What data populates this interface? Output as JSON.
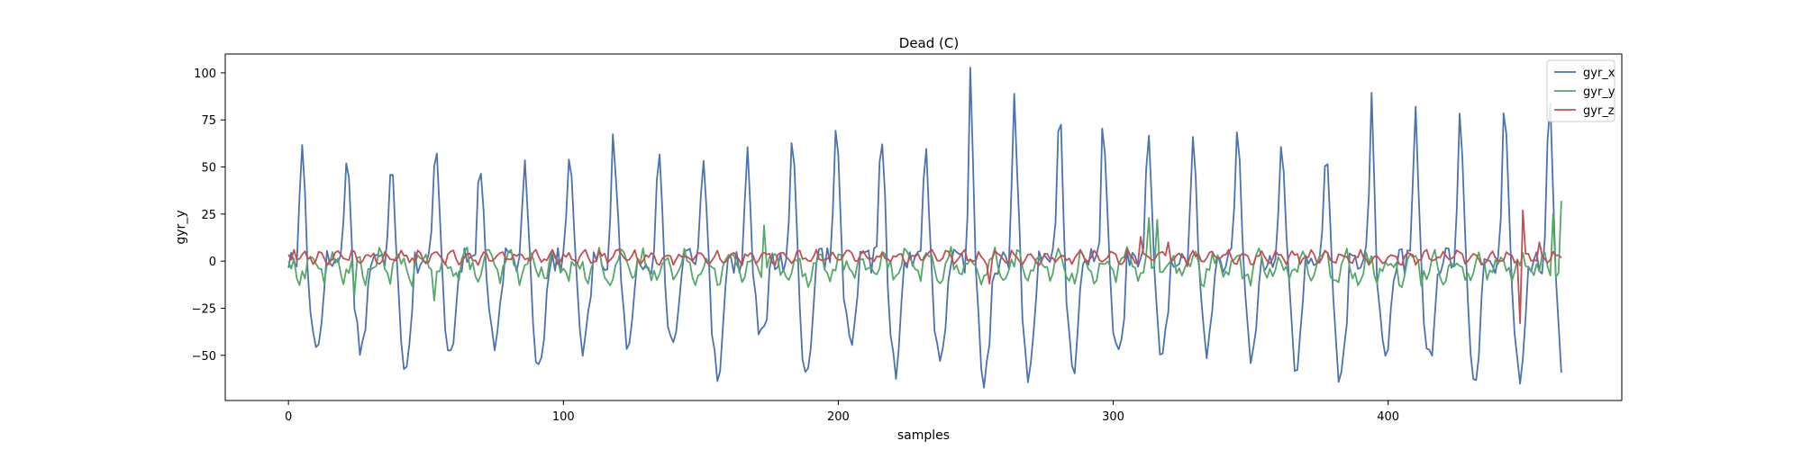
{
  "chart_data": {
    "type": "line",
    "title": "Dead (C)",
    "xlabel": "samples",
    "ylabel": "gyr_y",
    "xlim": [
      -23,
      485
    ],
    "ylim": [
      -74,
      110
    ],
    "xticks": [
      0,
      100,
      200,
      300,
      400
    ],
    "yticks": [
      -50,
      -25,
      0,
      25,
      50,
      75,
      100
    ],
    "xtick_labels": [
      "0",
      "100",
      "200",
      "300",
      "400"
    ],
    "ytick_labels": [
      "−50",
      "−25",
      "0",
      "25",
      "50",
      "75",
      "100"
    ],
    "legend_position": "top-right",
    "n_samples": 464,
    "series": [
      {
        "name": "gyr_x",
        "color": "#4c72b0",
        "period": 16.2,
        "phase": 5,
        "peaks": [
          64,
          64,
          68,
          70,
          55,
          59,
          81,
          71,
          62,
          66,
          66,
          80,
          75,
          84,
          64,
          96,
          86,
          94,
          72,
          73,
          72,
          75,
          71,
          67,
          100,
          82,
          92,
          101,
          102
        ],
        "troughs": [
          -46,
          -46,
          -54,
          -47,
          -48,
          -57,
          -46,
          -45,
          -45,
          -60,
          -43,
          -58,
          -48,
          -58,
          -57,
          -62,
          -63,
          -55,
          -50,
          -48,
          -45,
          -50,
          -56,
          -62,
          -54,
          -53,
          -65,
          -60,
          -58
        ],
        "noise": 7,
        "baseline": 0
      },
      {
        "name": "gyr_y",
        "color": "#55a868",
        "period": 8,
        "amplitude": 6,
        "noise": 5,
        "baseline": -3,
        "spikes": [
          [
            1,
            -4
          ],
          [
            24,
            -18
          ],
          [
            53,
            -21
          ],
          [
            173,
            19
          ],
          [
            182,
            -10
          ],
          [
            286,
            -12
          ],
          [
            313,
            23
          ],
          [
            316,
            22
          ],
          [
            334,
            -4
          ],
          [
            350,
            -13
          ],
          [
            460,
            25
          ],
          [
            463,
            32
          ]
        ]
      },
      {
        "name": "gyr_z",
        "color": "#c44e52",
        "period": 6,
        "amplitude": 2.5,
        "noise": 2,
        "baseline": 2,
        "spikes": [
          [
            2,
            6
          ],
          [
            255,
            -12
          ],
          [
            310,
            13
          ],
          [
            320,
            10
          ],
          [
            448,
            -33
          ],
          [
            449,
            27
          ],
          [
            455,
            10
          ],
          [
            460,
            5
          ]
        ]
      }
    ]
  }
}
